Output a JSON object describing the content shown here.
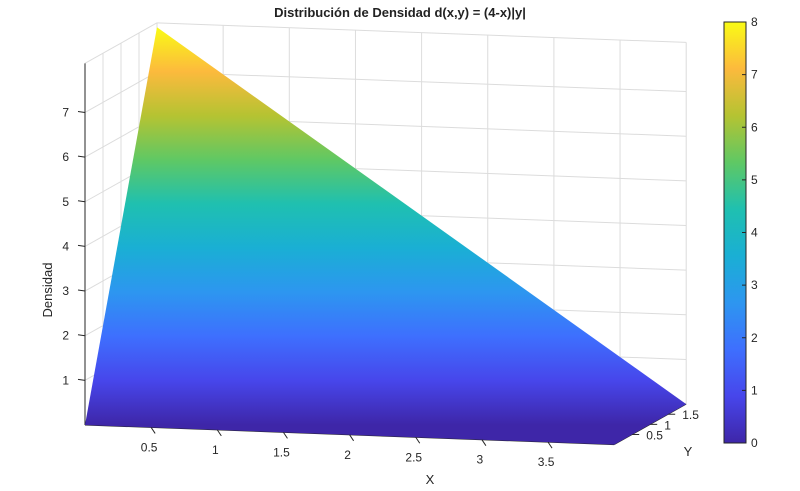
{
  "chart_data": {
    "type": "surface",
    "title": "Distribución de Densidad d(x,y) = (4-x)|y|",
    "xlabel": "X",
    "ylabel": "Y",
    "zlabel": "Densidad",
    "x_ticks": [
      "0.5",
      "1",
      "1.5",
      "2",
      "2.5",
      "3",
      "3.5"
    ],
    "y_ticks": [
      "0.5",
      "1",
      "1.5"
    ],
    "z_ticks": [
      "1",
      "2",
      "3",
      "4",
      "5",
      "6",
      "7"
    ],
    "colorbar_ticks": [
      "0",
      "1",
      "2",
      "3",
      "4",
      "5",
      "6",
      "7",
      "8"
    ],
    "colormap": "parula",
    "colorbar_stops": [
      "#3e26a8",
      "#4746eb",
      "#3e6ffe",
      "#2d96f0",
      "#1aafd4",
      "#1fc0b0",
      "#5fc864",
      "#b5c332",
      "#fcba3d",
      "#f9fb15"
    ],
    "xlim": [
      0,
      4
    ],
    "ylim": [
      0,
      2
    ],
    "zlim": [
      0,
      8
    ],
    "clim": [
      0,
      8
    ],
    "grid": true,
    "colorbar_location": "right",
    "surface_corners": [
      {
        "x": 0,
        "y": 2,
        "z": 8
      },
      {
        "x": 4,
        "y": 2,
        "z": 0
      },
      {
        "x": 4,
        "y": 0,
        "z": 0
      },
      {
        "x": 0,
        "y": 0,
        "z": 0
      }
    ]
  }
}
